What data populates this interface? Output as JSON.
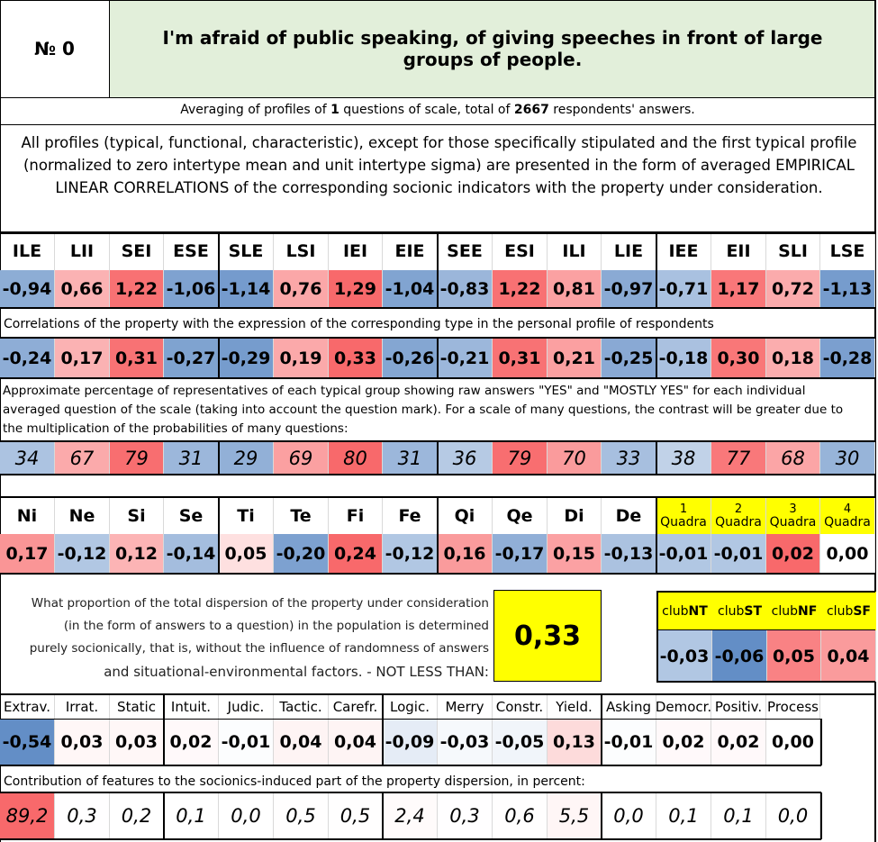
{
  "header": {
    "number": "№ 0",
    "title": "I'm afraid of public speaking, of giving speeches in front of large groups of people."
  },
  "summary": [
    "Averaging of profiles of ",
    "1",
    " questions of scale, total of ",
    "2667",
    " respondents' answers."
  ],
  "note": "All profiles (typical, functional, characteristic), except for those specifically stipulated and the first typical profile (normalized to zero intertype mean and unit intertype sigma) are presented in the form of averaged EMPIRICAL LINEAR CORRELATIONS of the corresponding socionic indicators with the property under consideration.",
  "types": {
    "headers": [
      "ILE",
      "LII",
      "SEI",
      "ESE",
      "SLE",
      "LSI",
      "IEI",
      "EIE",
      "SEE",
      "ESI",
      "ILI",
      "LIE",
      "IEE",
      "EII",
      "SLI",
      "LSE"
    ],
    "values": [
      "-0,94",
      "0,66",
      "1,22",
      "-1,06",
      "-1,14",
      "0,76",
      "1,29",
      "-1,04",
      "-0,83",
      "1,22",
      "0,81",
      "-0,97",
      "-0,71",
      "1,17",
      "0,72",
      "-1,13"
    ]
  },
  "correlations": {
    "caption": "Correlations of the property with the expression of the corresponding type in the personal profile of respondents",
    "values": [
      "-0,24",
      "0,17",
      "0,31",
      "-0,27",
      "-0,29",
      "0,19",
      "0,33",
      "-0,26",
      "-0,21",
      "0,31",
      "0,21",
      "-0,25",
      "-0,18",
      "0,30",
      "0,18",
      "-0,28"
    ]
  },
  "percentages": {
    "caption": "Approximate percentage of representatives of each typical group showing raw answers \"YES\" and \"MOSTLY YES\" for each individual averaged question of the scale (taking into account the question mark). For a scale of many questions, the contrast will be greater due to the multiplication of the probabilities of many questions:",
    "values": [
      "34",
      "67",
      "79",
      "31",
      "29",
      "69",
      "80",
      "31",
      "36",
      "79",
      "70",
      "33",
      "38",
      "77",
      "68",
      "30"
    ]
  },
  "functions": {
    "headers": [
      "Ni",
      "Ne",
      "Si",
      "Se",
      "Ti",
      "Te",
      "Fi",
      "Fe",
      "Qi",
      "Qe",
      "Di",
      "De"
    ],
    "values": [
      "0,17",
      "-0,12",
      "0,12",
      "-0,14",
      "0,05",
      "-0,20",
      "0,24",
      "-0,12",
      "0,16",
      "-0,17",
      "0,15",
      "-0,13"
    ]
  },
  "quadras": {
    "headers": [
      {
        "number": "1",
        "label": "Quadra"
      },
      {
        "number": "2",
        "label": "Quadra"
      },
      {
        "number": "3",
        "label": "Quadra"
      },
      {
        "number": "4",
        "label": "Quadra"
      }
    ],
    "values": [
      "-0,01",
      "-0,01",
      "0,02",
      "0,00"
    ]
  },
  "dispersion": {
    "lines": [
      "What proportion of the total dispersion of the property under consideration",
      "(in the form of answers to a question) in the population is determined",
      "purely socionically, that is, without the influence of randomness of answers",
      "and situational-environmental factors. - NOT LESS THAN:"
    ],
    "value": "0,33"
  },
  "clubs": {
    "headers": [
      [
        "club",
        "NT"
      ],
      [
        "club",
        "ST"
      ],
      [
        "club",
        "NF"
      ],
      [
        "club",
        "SF"
      ]
    ],
    "values": [
      "-0,03",
      "-0,06",
      "0,05",
      "0,04"
    ]
  },
  "features": {
    "headers": [
      "Extrav.",
      "Irrat.",
      "Static",
      "Intuit.",
      "Judic.",
      "Tactic.",
      "Carefr.",
      "Logic.",
      "Merry",
      "Constr.",
      "Yield.",
      "Asking",
      "Democr.",
      "Positiv.",
      "Process"
    ],
    "values": [
      "-0,54",
      "0,03",
      "0,03",
      "0,02",
      "-0,01",
      "0,04",
      "0,04",
      "-0,09",
      "-0,03",
      "-0,05",
      "0,13",
      "-0,01",
      "0,02",
      "0,02",
      "0,00"
    ],
    "caption": "Contribution of features to the sociоnics-induced part of the property dispersion, in percent:",
    "contributions": [
      "89,2",
      "0,3",
      "0,2",
      "0,1",
      "0,0",
      "0,5",
      "0,5",
      "2,4",
      "0,3",
      "0,6",
      "5,5",
      "0,0",
      "0,1",
      "0,1",
      "0,0"
    ]
  }
}
